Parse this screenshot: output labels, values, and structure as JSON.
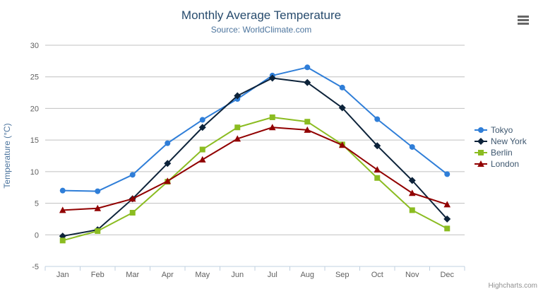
{
  "header": {
    "title": "Monthly Average Temperature",
    "subtitle": "Source: WorldClimate.com"
  },
  "credits_label": "Highcharts.com",
  "chart_data": {
    "type": "line",
    "title": "Monthly Average Temperature",
    "subtitle": "Source: WorldClimate.com",
    "categories": [
      "Jan",
      "Feb",
      "Mar",
      "Apr",
      "May",
      "Jun",
      "Jul",
      "Aug",
      "Sep",
      "Oct",
      "Nov",
      "Dec"
    ],
    "xlabel": "",
    "ylabel": "Temperature (°C)",
    "ylim": [
      -5,
      30
    ],
    "ytick_interval": 5,
    "grid": true,
    "legend_position": "right",
    "series": [
      {
        "name": "Tokyo",
        "color": "#2f7ed8",
        "marker": "circle",
        "values": [
          7.0,
          6.9,
          9.5,
          14.5,
          18.2,
          21.5,
          25.2,
          26.5,
          23.3,
          18.3,
          13.9,
          9.6
        ]
      },
      {
        "name": "New York",
        "color": "#0d233a",
        "marker": "diamond",
        "values": [
          -0.2,
          0.8,
          5.7,
          11.3,
          17.0,
          22.0,
          24.8,
          24.1,
          20.1,
          14.1,
          8.6,
          2.5
        ]
      },
      {
        "name": "Berlin",
        "color": "#8bbc21",
        "marker": "square",
        "values": [
          -0.9,
          0.6,
          3.5,
          8.4,
          13.5,
          17.0,
          18.6,
          17.9,
          14.3,
          9.0,
          3.9,
          1.0
        ]
      },
      {
        "name": "London",
        "color": "#910000",
        "marker": "triangle",
        "values": [
          3.9,
          4.2,
          5.7,
          8.5,
          11.9,
          15.2,
          17.0,
          16.6,
          14.2,
          10.3,
          6.6,
          4.8
        ]
      }
    ]
  },
  "colors": {
    "title": "#274b6d",
    "subtitle": "#4d759e",
    "axis_label": "#606060",
    "axis_title": "#4d759e",
    "grid_line": "#c0c0c0",
    "axis_line": "#c0d0e0",
    "legend_text": "#3E576F",
    "credits": "#909090",
    "menu_icon": "#666666"
  }
}
